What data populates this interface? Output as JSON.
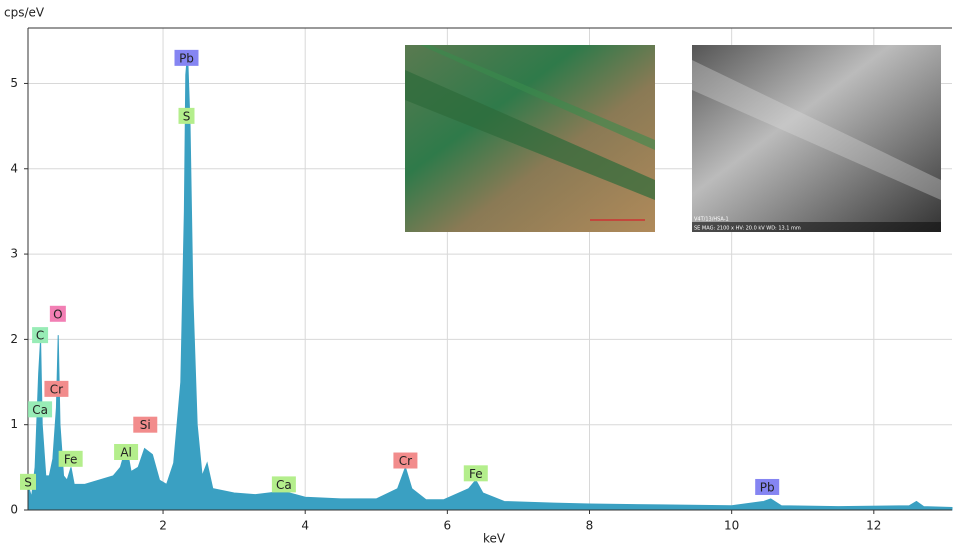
{
  "chart_data": {
    "type": "area",
    "y_label": "cps/eV",
    "x_label": "keV",
    "x": [
      0.1,
      0.15,
      0.2,
      0.25,
      0.277,
      0.3,
      0.35,
      0.4,
      0.45,
      0.5,
      0.525,
      0.55,
      0.6,
      0.65,
      0.705,
      0.75,
      0.9,
      1.1,
      1.3,
      1.4,
      1.486,
      1.55,
      1.65,
      1.74,
      1.85,
      1.95,
      2.05,
      2.15,
      2.25,
      2.3,
      2.32,
      2.345,
      2.38,
      2.42,
      2.48,
      2.55,
      2.62,
      2.7,
      3.0,
      3.3,
      3.69,
      4.0,
      4.5,
      5.0,
      5.3,
      5.41,
      5.5,
      5.7,
      5.95,
      6.3,
      6.4,
      6.5,
      6.8,
      7.5,
      8.0,
      9.0,
      10.0,
      10.45,
      10.55,
      10.7,
      11.5,
      12.5,
      12.6,
      12.7,
      13.1
    ],
    "values": [
      0.3,
      0.15,
      0.5,
      1.6,
      2.0,
      1.0,
      0.4,
      0.4,
      0.6,
      1.2,
      2.05,
      1.0,
      0.4,
      0.35,
      0.5,
      0.3,
      0.3,
      0.35,
      0.4,
      0.5,
      0.75,
      0.45,
      0.5,
      0.72,
      0.65,
      0.35,
      0.3,
      0.55,
      1.5,
      3.5,
      5.1,
      5.35,
      4.5,
      2.5,
      1.0,
      0.4,
      0.55,
      0.25,
      0.2,
      0.18,
      0.22,
      0.15,
      0.13,
      0.13,
      0.25,
      0.5,
      0.25,
      0.12,
      0.12,
      0.25,
      0.35,
      0.2,
      0.1,
      0.08,
      0.07,
      0.06,
      0.05,
      0.1,
      0.13,
      0.05,
      0.04,
      0.05,
      0.1,
      0.04,
      0.03
    ],
    "color": "#3aa0c2",
    "xlim": [
      0.1,
      13.1
    ],
    "ylim": [
      0,
      5.65
    ],
    "xticks": [
      2,
      4,
      6,
      8,
      10,
      12
    ],
    "yticks": [
      0,
      1,
      2,
      3,
      4,
      5
    ],
    "grid": true,
    "annotations": [
      {
        "text": "Pb",
        "x": 2.33,
        "y": 5.3,
        "color": "#8585f2"
      },
      {
        "text": "S",
        "x": 2.33,
        "y": 4.62,
        "color": "#b4ee8c"
      },
      {
        "text": "O",
        "x": 0.52,
        "y": 2.3,
        "color": "#f27fb4"
      },
      {
        "text": "C",
        "x": 0.27,
        "y": 2.05,
        "color": "#98ecb6"
      },
      {
        "text": "Cr",
        "x": 0.5,
        "y": 1.42,
        "color": "#f28c8c"
      },
      {
        "text": "Ca",
        "x": 0.27,
        "y": 1.18,
        "color": "#98ecb6"
      },
      {
        "text": "Si",
        "x": 1.75,
        "y": 1.0,
        "color": "#f28c8c"
      },
      {
        "text": "Fe",
        "x": 0.7,
        "y": 0.6,
        "color": "#b4ee8c"
      },
      {
        "text": "Al",
        "x": 1.48,
        "y": 0.68,
        "color": "#b4ee8c"
      },
      {
        "text": "S",
        "x": 0.1,
        "y": 0.33,
        "color": "#b4ee8c"
      },
      {
        "text": "Ca",
        "x": 3.7,
        "y": 0.3,
        "color": "#b4ee8c"
      },
      {
        "text": "Cr",
        "x": 5.41,
        "y": 0.58,
        "color": "#f28c8c"
      },
      {
        "text": "Fe",
        "x": 6.4,
        "y": 0.43,
        "color": "#b4ee8c"
      },
      {
        "text": "Pb",
        "x": 10.5,
        "y": 0.27,
        "color": "#8585f2"
      }
    ],
    "inset_labels": [
      "V4T/13/HSA-1",
      "SE MAG: 2100 x HV: 20.0 kV WD: 13.1 mm"
    ]
  }
}
